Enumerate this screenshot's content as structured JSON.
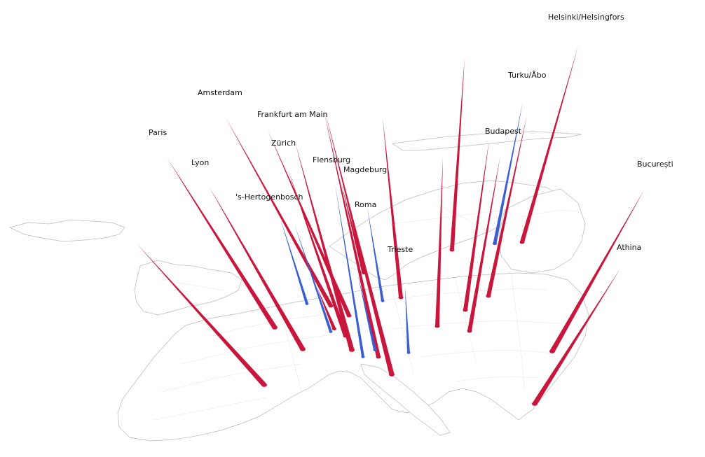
{
  "map": {
    "colors": {
      "red": "#c8163c",
      "blue": "#3a5fd0",
      "land_stroke": "#b9b9b9",
      "region_stroke": "#e3e3e3"
    },
    "spikes": [
      {
        "color": "red"
      },
      {
        "color": "red"
      },
      {
        "color": "red"
      },
      {
        "color": "red"
      },
      {
        "color": "red"
      },
      {
        "color": "red"
      },
      {
        "color": "red"
      },
      {
        "color": "red"
      },
      {
        "color": "red"
      },
      {
        "color": "red"
      },
      {
        "color": "red"
      },
      {
        "color": "red"
      },
      {
        "color": "red"
      },
      {
        "color": "red"
      },
      {
        "color": "red"
      },
      {
        "color": "red"
      },
      {
        "color": "red"
      },
      {
        "color": "red"
      },
      {
        "color": "red"
      },
      {
        "color": "red"
      },
      {
        "color": "blue"
      },
      {
        "color": "blue"
      },
      {
        "color": "blue"
      },
      {
        "color": "blue"
      },
      {
        "color": "blue"
      },
      {
        "color": "blue"
      },
      {
        "color": "blue"
      }
    ],
    "labels": {
      "helsinki": "Helsinki/Helsingfors",
      "turku": "Turku/Åbo",
      "amsterdam": "Amsterdam",
      "frankfurt": "Frankfurt am Main",
      "paris": "Paris",
      "zurich": "Zürich",
      "budapest": "Budapest",
      "lyon": "Lyon",
      "flensburg": "Flensburg",
      "magdeburg": "Magdeburg",
      "bucuresti": "București",
      "hertogenbosch": "'s-Hertogenbosch",
      "roma": "Roma",
      "athina": "Athina",
      "trieste": "Trieste"
    }
  }
}
